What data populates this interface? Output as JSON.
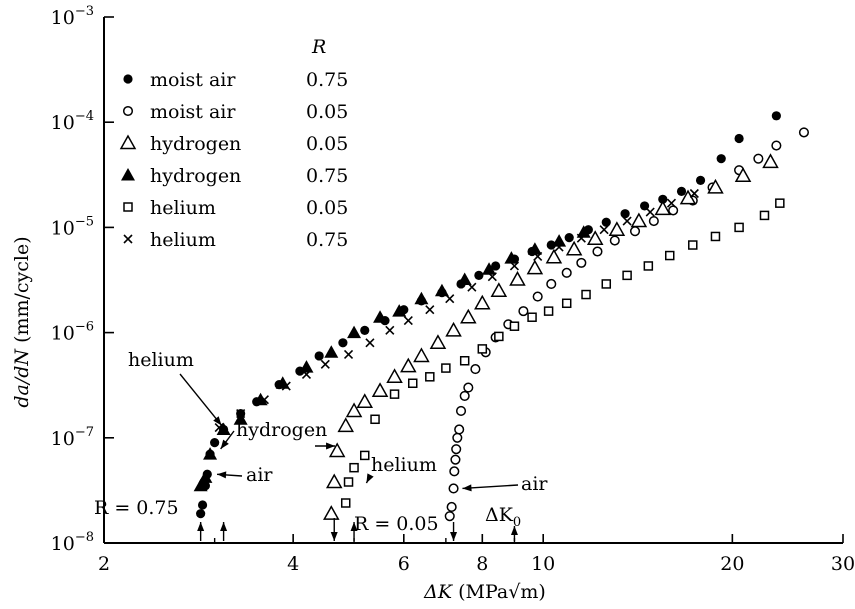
{
  "chart_data": {
    "type": "scatter",
    "title": "",
    "xlabel_parts": [
      "ΔK",
      " (MPa",
      "√",
      "m)"
    ],
    "ylabel_parts": [
      "da/dN",
      " (mm/cycle)"
    ],
    "xscale": "log",
    "yscale": "log",
    "xlim": [
      2,
      30
    ],
    "ylim": [
      1e-08,
      0.001
    ],
    "x_ticks": [
      {
        "value": 2,
        "label": "2"
      },
      {
        "value": 4,
        "label": "4"
      },
      {
        "value": 6,
        "label": "6"
      },
      {
        "value": 8,
        "label": "8"
      },
      {
        "value": 10,
        "label": "10"
      },
      {
        "value": 20,
        "label": "20"
      },
      {
        "value": 30,
        "label": "30"
      }
    ],
    "x_minor_ticks": [
      3,
      5,
      7,
      9
    ],
    "y_ticks": [
      {
        "value": 1e-08,
        "exp": "−8"
      },
      {
        "value": 1e-07,
        "exp": "−7"
      },
      {
        "value": 1e-06,
        "exp": "−6"
      },
      {
        "value": 1e-05,
        "exp": "−5"
      },
      {
        "value": 0.0001,
        "exp": "−4"
      },
      {
        "value": 0.001,
        "exp": "−3"
      }
    ],
    "legend_position": "top-left",
    "legend_header": "R",
    "series": [
      {
        "name": "moist air",
        "r": "0.75",
        "marker": "filled-circle",
        "points": [
          [
            2.85,
            1.9e-08
          ],
          [
            2.87,
            2.3e-08
          ],
          [
            2.9,
            3.5e-08
          ],
          [
            2.92,
            4.5e-08
          ],
          [
            2.95,
            7e-08
          ],
          [
            3.0,
            9e-08
          ],
          [
            3.1,
            1.2e-07
          ],
          [
            3.3,
            1.7e-07
          ],
          [
            3.5,
            2.2e-07
          ],
          [
            3.8,
            3.2e-07
          ],
          [
            4.1,
            4.3e-07
          ],
          [
            4.4,
            6e-07
          ],
          [
            4.8,
            8e-07
          ],
          [
            5.2,
            1.05e-06
          ],
          [
            5.6,
            1.3e-06
          ],
          [
            6.0,
            1.65e-06
          ],
          [
            6.4,
            2e-06
          ],
          [
            6.9,
            2.4e-06
          ],
          [
            7.4,
            2.9e-06
          ],
          [
            7.9,
            3.5e-06
          ],
          [
            8.4,
            4.3e-06
          ],
          [
            9.0,
            5e-06
          ],
          [
            9.6,
            5.9e-06
          ],
          [
            10.3,
            6.8e-06
          ],
          [
            11.0,
            8e-06
          ],
          [
            11.8,
            9.5e-06
          ],
          [
            12.6,
            1.12e-05
          ],
          [
            13.5,
            1.35e-05
          ],
          [
            14.5,
            1.6e-05
          ],
          [
            15.5,
            1.85e-05
          ],
          [
            16.6,
            2.2e-05
          ],
          [
            17.8,
            2.8e-05
          ],
          [
            19.2,
            4.5e-05
          ],
          [
            20.5,
            7e-05
          ],
          [
            23.5,
            0.000115
          ]
        ]
      },
      {
        "name": "moist air",
        "r": "0.05",
        "marker": "open-circle",
        "points": [
          [
            7.1,
            1.8e-08
          ],
          [
            7.15,
            2.2e-08
          ],
          [
            7.2,
            3.3e-08
          ],
          [
            7.22,
            4.8e-08
          ],
          [
            7.25,
            6.2e-08
          ],
          [
            7.27,
            7.8e-08
          ],
          [
            7.3,
            1e-07
          ],
          [
            7.35,
            1.2e-07
          ],
          [
            7.4,
            1.8e-07
          ],
          [
            7.5,
            2.5e-07
          ],
          [
            7.6,
            3e-07
          ],
          [
            7.8,
            4.5e-07
          ],
          [
            8.1,
            6.5e-07
          ],
          [
            8.4,
            9e-07
          ],
          [
            8.8,
            1.2e-06
          ],
          [
            9.3,
            1.6e-06
          ],
          [
            9.8,
            2.2e-06
          ],
          [
            10.3,
            2.9e-06
          ],
          [
            10.9,
            3.7e-06
          ],
          [
            11.5,
            4.6e-06
          ],
          [
            12.2,
            5.9e-06
          ],
          [
            13.0,
            7.5e-06
          ],
          [
            14.0,
            9.2e-06
          ],
          [
            15.0,
            1.15e-05
          ],
          [
            16.1,
            1.45e-05
          ],
          [
            17.3,
            1.8e-05
          ],
          [
            18.6,
            2.4e-05
          ],
          [
            20.5,
            3.5e-05
          ],
          [
            22.0,
            4.5e-05
          ],
          [
            23.5,
            6e-05
          ],
          [
            26.0,
            8e-05
          ]
        ]
      },
      {
        "name": "hydrogen",
        "r": "0.05",
        "marker": "open-triangle",
        "points": [
          [
            4.6,
            1.9e-08
          ],
          [
            4.65,
            3.8e-08
          ],
          [
            4.7,
            7.5e-08
          ],
          [
            4.85,
            1.3e-07
          ],
          [
            5.0,
            1.8e-07
          ],
          [
            5.2,
            2.2e-07
          ],
          [
            5.5,
            2.8e-07
          ],
          [
            5.8,
            3.8e-07
          ],
          [
            6.1,
            4.8e-07
          ],
          [
            6.4,
            6e-07
          ],
          [
            6.8,
            8e-07
          ],
          [
            7.2,
            1.05e-06
          ],
          [
            7.6,
            1.4e-06
          ],
          [
            8.0,
            1.9e-06
          ],
          [
            8.5,
            2.5e-06
          ],
          [
            9.1,
            3.2e-06
          ],
          [
            9.7,
            4.1e-06
          ],
          [
            10.4,
            5.2e-06
          ],
          [
            11.2,
            6.2e-06
          ],
          [
            12.1,
            7.8e-06
          ],
          [
            13.1,
            9.5e-06
          ],
          [
            14.2,
            1.15e-05
          ],
          [
            15.5,
            1.5e-05
          ],
          [
            17.0,
            1.9e-05
          ],
          [
            18.8,
            2.4e-05
          ],
          [
            20.8,
            3.1e-05
          ],
          [
            23.0,
            4.2e-05
          ]
        ]
      },
      {
        "name": "hydrogen",
        "r": "0.75",
        "marker": "filled-triangle",
        "points": [
          [
            2.85,
            3.5e-08
          ],
          [
            2.9,
            4.2e-08
          ],
          [
            2.95,
            7e-08
          ],
          [
            3.1,
            1.2e-07
          ],
          [
            3.3,
            1.5e-07
          ],
          [
            3.55,
            2.3e-07
          ],
          [
            3.85,
            3.3e-07
          ],
          [
            4.2,
            4.7e-07
          ],
          [
            4.6,
            6.5e-07
          ],
          [
            5.0,
            1e-06
          ],
          [
            5.5,
            1.4e-06
          ],
          [
            5.9,
            1.6e-06
          ],
          [
            6.4,
            2.1e-06
          ],
          [
            6.9,
            2.5e-06
          ],
          [
            7.5,
            3.2e-06
          ],
          [
            8.2,
            4e-06
          ],
          [
            8.9,
            5.1e-06
          ],
          [
            9.7,
            6.2e-06
          ],
          [
            10.6,
            7.4e-06
          ],
          [
            11.6,
            9e-06
          ]
        ]
      },
      {
        "name": "helium",
        "r": "0.05",
        "marker": "open-square",
        "points": [
          [
            4.85,
            2.4e-08
          ],
          [
            4.9,
            3.8e-08
          ],
          [
            5.0,
            5.2e-08
          ],
          [
            5.2,
            6.8e-08
          ],
          [
            5.4,
            1.5e-07
          ],
          [
            5.8,
            2.6e-07
          ],
          [
            6.2,
            3.3e-07
          ],
          [
            6.6,
            3.8e-07
          ],
          [
            7.0,
            4.6e-07
          ],
          [
            7.5,
            5.4e-07
          ],
          [
            8.0,
            7e-07
          ],
          [
            8.5,
            9.2e-07
          ],
          [
            9.0,
            1.15e-06
          ],
          [
            9.6,
            1.4e-06
          ],
          [
            10.2,
            1.6e-06
          ],
          [
            10.9,
            1.9e-06
          ],
          [
            11.7,
            2.3e-06
          ],
          [
            12.6,
            2.9e-06
          ],
          [
            13.6,
            3.5e-06
          ],
          [
            14.7,
            4.3e-06
          ],
          [
            15.9,
            5.4e-06
          ],
          [
            17.3,
            6.8e-06
          ],
          [
            18.8,
            8.2e-06
          ],
          [
            20.5,
            1e-05
          ],
          [
            22.5,
            1.3e-05
          ],
          [
            23.8,
            1.7e-05
          ]
        ]
      },
      {
        "name": "helium",
        "r": "0.75",
        "marker": "cross",
        "points": [
          [
            3.05,
            1.25e-07
          ],
          [
            3.3,
            1.7e-07
          ],
          [
            3.6,
            2.3e-07
          ],
          [
            3.9,
            3.1e-07
          ],
          [
            4.2,
            4e-07
          ],
          [
            4.5,
            5e-07
          ],
          [
            4.9,
            6.2e-07
          ],
          [
            5.3,
            8e-07
          ],
          [
            5.7,
            1.05e-06
          ],
          [
            6.1,
            1.3e-06
          ],
          [
            6.6,
            1.65e-06
          ],
          [
            7.1,
            2.1e-06
          ],
          [
            7.7,
            2.7e-06
          ],
          [
            8.3,
            3.4e-06
          ],
          [
            9.0,
            4.3e-06
          ],
          [
            9.8,
            5.3e-06
          ],
          [
            10.6,
            6.5e-06
          ],
          [
            11.5,
            7.9e-06
          ],
          [
            12.5,
            9.5e-06
          ],
          [
            13.6,
            1.15e-05
          ],
          [
            14.8,
            1.4e-05
          ],
          [
            16.0,
            1.7e-05
          ],
          [
            17.4,
            2.1e-05
          ]
        ]
      }
    ],
    "annotations": [
      {
        "text": "helium",
        "points_at": [
          3.1,
          1.2e-07
        ]
      },
      {
        "text": "hydrogen",
        "points_at": [
          3.0,
          7.5e-08
        ]
      },
      {
        "text": "air",
        "points_at": [
          2.95,
          4.5e-08
        ]
      },
      {
        "text": "hydrogen",
        "points_at": [
          4.75,
          8e-08
        ]
      },
      {
        "text": "helium",
        "points_at": [
          5.1,
          3.8e-08
        ]
      },
      {
        "text": "air",
        "points_at": [
          7.25,
          3.3e-08
        ]
      }
    ],
    "threshold_markers": [
      {
        "label": "R = 0.75",
        "x_values": [
          2.85,
          3.1
        ]
      },
      {
        "label": "R = 0.05",
        "x_values": [
          4.65,
          5.0
        ]
      },
      {
        "label": "ΔK",
        "subscript": "0",
        "x_values": [
          7.2,
          9.0
        ]
      }
    ]
  }
}
